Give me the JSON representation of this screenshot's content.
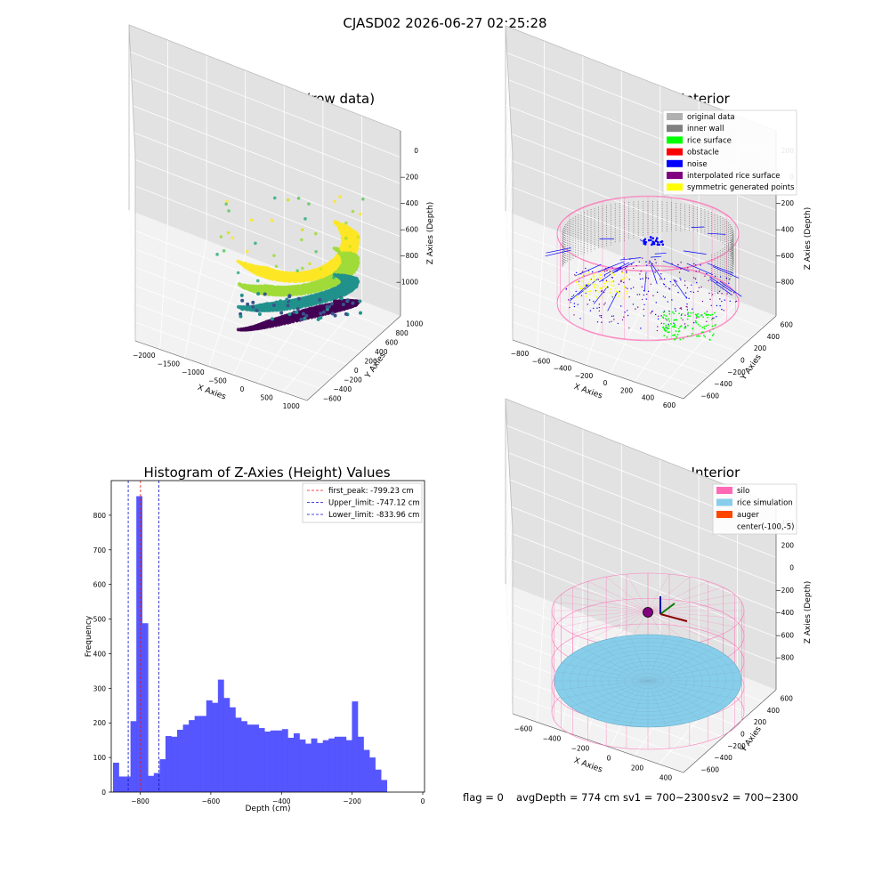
{
  "figure": {
    "suptitle": "CJASD02 2026-06-27 02:25:28",
    "footer": {
      "flag": "flag = 0",
      "avg": "avgDepth = 774 cm",
      "sv1": "sv1 = 700~2300",
      "sv2": "sv2 = 700~2300"
    }
  },
  "colors": {
    "hist_bar": "#4d4dff",
    "peak_line": "#e31a1c",
    "limit_line": "#1010c0",
    "silo": "#ff69b4",
    "rice_sim": "#87ceeb",
    "auger": "#ff4500",
    "inner_wall": "#808080",
    "original": "#b0b0b0",
    "rice_surface": "#00ff00",
    "obstacle": "#ff0000",
    "noise": "#0000ff",
    "interp": "#800080",
    "symm": "#ffff00"
  },
  "chart_data": [
    {
      "type": "scatter3d",
      "title": "3D Plot of Silo Interior(row data)",
      "xlabel": "X Axies",
      "ylabel": "Y Axies",
      "zlabel": "Z Axies (Depth)",
      "xticks": [
        "−2000",
        "−1500",
        "−1000",
        "−500",
        "0",
        "500",
        "1000"
      ],
      "yticks": [
        "−600",
        "−400",
        "−200",
        "0",
        "200",
        "400",
        "600",
        "800",
        "1000"
      ],
      "zticks": [
        "0",
        "−200",
        "−400",
        "−600",
        "−800",
        "−1000"
      ],
      "colormap": "viridis"
    },
    {
      "type": "scatter3d",
      "title": "3D classify of Silo Interior",
      "xlabel": "X Axies",
      "ylabel": "Y Axies",
      "zlabel": "Z Axies (Depth)",
      "xticks": [
        "−800",
        "−600",
        "−400",
        "−200",
        "0",
        "200",
        "400",
        "600"
      ],
      "yticks": [
        "−600",
        "−400",
        "−200",
        "0",
        "200",
        "400",
        "600"
      ],
      "zticks": [
        "200",
        "0",
        "−200",
        "−400",
        "−600",
        "−800"
      ],
      "legend": [
        {
          "label": "original data",
          "color": "#b0b0b0"
        },
        {
          "label": "inner wall",
          "color": "#808080"
        },
        {
          "label": "rice surface",
          "color": "#00ff00"
        },
        {
          "label": "obstacle",
          "color": "#ff0000"
        },
        {
          "label": "noise",
          "color": "#0000ff"
        },
        {
          "label": "interpolated rice surface",
          "color": "#800080"
        },
        {
          "label": "symmetric generated points",
          "color": "#ffff00"
        }
      ]
    },
    {
      "type": "bar",
      "title": "Histogram of Z-Axies (Height) Values",
      "xlabel": "Depth (cm)",
      "ylabel": "Frequency",
      "xlim": [
        -882,
        5
      ],
      "ylim": [
        0,
        900
      ],
      "xticks": [
        -800,
        -600,
        -400,
        -200,
        0
      ],
      "yticks": [
        0,
        100,
        200,
        300,
        400,
        500,
        600,
        700,
        800
      ],
      "bin_width": 16.5,
      "bin_start": -877,
      "values": [
        85,
        45,
        45,
        205,
        855,
        488,
        47,
        55,
        95,
        162,
        160,
        180,
        195,
        208,
        220,
        220,
        265,
        258,
        325,
        272,
        245,
        215,
        205,
        195,
        195,
        185,
        175,
        178,
        178,
        182,
        157,
        170,
        152,
        140,
        155,
        142,
        150,
        155,
        160,
        160,
        150,
        262,
        160,
        122,
        100,
        65,
        35
      ],
      "lines": [
        {
          "label": "first_peak: -799.23 cm",
          "x": -799.23,
          "color": "#e31a1c"
        },
        {
          "label": "Upper_limit: -747.12 cm",
          "x": -747.12,
          "color": "#1010c0"
        },
        {
          "label": "Lower_limit: -833.96 cm",
          "x": -833.96,
          "color": "#1010c0"
        }
      ]
    },
    {
      "type": "surface3d",
      "title": "3D simulation of Silo Interior",
      "xlabel": "X Axies",
      "ylabel": "Y Axies",
      "zlabel": "Z Axies (Depth)",
      "xticks": [
        "−600",
        "−400",
        "−200",
        "0",
        "200",
        "400"
      ],
      "yticks": [
        "−600",
        "−400",
        "−200",
        "0",
        "200",
        "400",
        "600"
      ],
      "zticks": [
        "400",
        "200",
        "0",
        "−200",
        "−400",
        "−600",
        "−800"
      ],
      "legend": [
        {
          "label": "silo",
          "color": "#ff69b4"
        },
        {
          "label": "rice simulation",
          "color": "#87ceeb"
        },
        {
          "label": "auger",
          "color": "#ff4500"
        },
        {
          "label": "center(-100,-5)",
          "color": ""
        }
      ]
    }
  ]
}
